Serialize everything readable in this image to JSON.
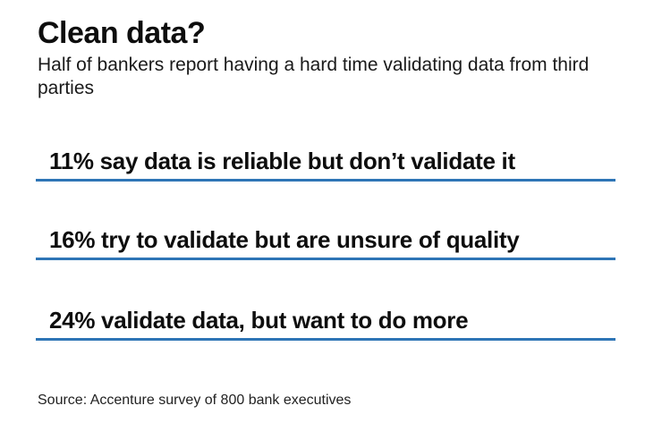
{
  "header": {
    "title": "Clean data?",
    "subtitle": "Half of bankers report having a hard time validating data from third parties"
  },
  "stats": [
    {
      "label": "11% say data is reliable but don’t validate it"
    },
    {
      "label": "16% try to validate but are unsure of quality"
    },
    {
      "label": "24% validate data, but want to do more"
    }
  ],
  "footer": {
    "source": "Source: Accenture survey of 800 bank executives"
  },
  "colors": {
    "underline_accent": "#2e75b6",
    "text": "#0e0e0e",
    "background": "#ffffff"
  },
  "chart_data": {
    "type": "table",
    "title": "Clean data?",
    "subtitle": "Half of bankers report having a hard time validating data from third parties",
    "categories": [
      "say data is reliable but don’t validate it",
      "try to validate but are unsure of quality",
      "validate data, but want to do more"
    ],
    "values": [
      11,
      16,
      24
    ],
    "unit": "%",
    "source": "Source: Accenture survey of 800 bank executives",
    "accent_color": "#2e75b6",
    "layout_hints": {
      "style": "stat list with blue rule under each entry",
      "grid": false,
      "legend": false
    }
  }
}
